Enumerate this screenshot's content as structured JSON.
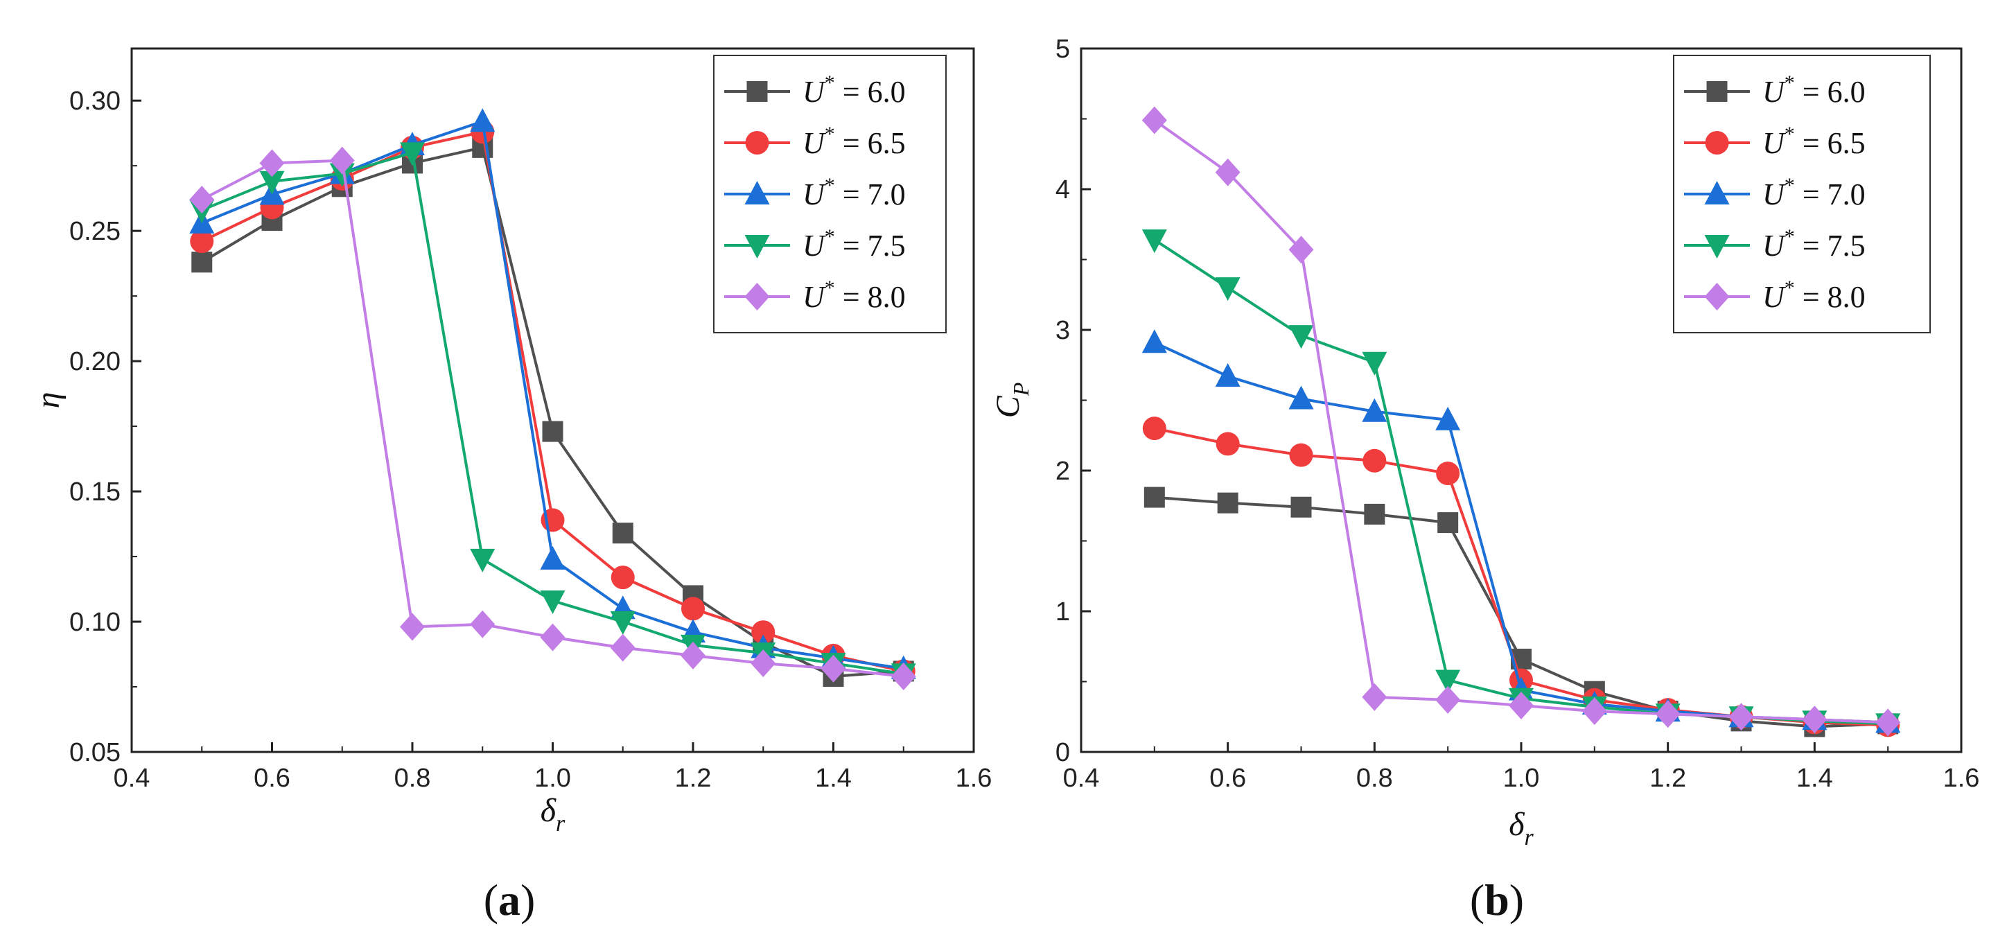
{
  "chart_data": [
    {
      "type": "line",
      "panel": "a",
      "panel_label": "a",
      "xlabel": "δ",
      "xlabel_sub": "r",
      "ylabel": "η",
      "xlim": [
        0.4,
        1.6
      ],
      "ylim": [
        0.05,
        0.32
      ],
      "xticks": [
        "0.4",
        "0.6",
        "0.8",
        "1.0",
        "1.2",
        "1.4",
        "1.6"
      ],
      "yticks": [
        "0.05",
        "0.10",
        "0.15",
        "0.20",
        "0.25",
        "0.30"
      ],
      "legend_position": "top-right",
      "x": [
        0.5,
        0.6,
        0.7,
        0.8,
        0.9,
        1.0,
        1.1,
        1.2,
        1.3,
        1.4,
        1.5
      ],
      "series": [
        {
          "name": "U* = 6.0",
          "legend_value": "6.0",
          "color": "#505050",
          "marker": "square",
          "values": [
            0.238,
            0.254,
            0.267,
            0.276,
            0.282,
            0.173,
            0.134,
            0.11,
            0.092,
            0.079,
            0.081
          ]
        },
        {
          "name": "U* = 6.5",
          "legend_value": "6.5",
          "color": "#f03c3c",
          "marker": "circle",
          "values": [
            0.246,
            0.259,
            0.27,
            0.282,
            0.288,
            0.139,
            0.117,
            0.105,
            0.096,
            0.087,
            0.081
          ]
        },
        {
          "name": "U* = 7.0",
          "legend_value": "7.0",
          "color": "#1c6fd6",
          "marker": "triangle-up",
          "values": [
            0.253,
            0.264,
            0.272,
            0.283,
            0.292,
            0.124,
            0.105,
            0.096,
            0.09,
            0.086,
            0.082
          ]
        },
        {
          "name": "U* = 7.5",
          "legend_value": "7.5",
          "color": "#12a86e",
          "marker": "triangle-down",
          "values": [
            0.258,
            0.269,
            0.272,
            0.28,
            0.124,
            0.108,
            0.1,
            0.091,
            0.088,
            0.084,
            0.08
          ]
        },
        {
          "name": "U* = 8.0",
          "legend_value": "8.0",
          "color": "#c27ee6",
          "marker": "diamond",
          "values": [
            0.262,
            0.276,
            0.277,
            0.098,
            0.099,
            0.094,
            0.09,
            0.087,
            0.084,
            0.082,
            0.079
          ]
        }
      ]
    },
    {
      "type": "line",
      "panel": "b",
      "panel_label": "b",
      "xlabel": "δ",
      "xlabel_sub": "r",
      "ylabel": "C",
      "ylabel_sub": "P",
      "xlim": [
        0.4,
        1.6
      ],
      "ylim": [
        0,
        5
      ],
      "xticks": [
        "0.4",
        "0.6",
        "0.8",
        "1.0",
        "1.2",
        "1.4",
        "1.6"
      ],
      "yticks": [
        "0",
        "1",
        "2",
        "3",
        "4",
        "5"
      ],
      "legend_position": "top-right",
      "x": [
        0.5,
        0.6,
        0.7,
        0.8,
        0.9,
        1.0,
        1.1,
        1.2,
        1.3,
        1.4,
        1.5
      ],
      "series": [
        {
          "name": "U* = 6.0",
          "legend_value": "6.0",
          "color": "#505050",
          "marker": "square",
          "values": [
            1.81,
            1.77,
            1.74,
            1.69,
            1.63,
            0.66,
            0.43,
            0.29,
            0.22,
            0.18,
            0.2
          ]
        },
        {
          "name": "U* = 6.5",
          "legend_value": "6.5",
          "color": "#f03c3c",
          "marker": "circle",
          "values": [
            2.3,
            2.19,
            2.11,
            2.07,
            1.98,
            0.51,
            0.37,
            0.3,
            0.25,
            0.21,
            0.19
          ]
        },
        {
          "name": "U* = 7.0",
          "legend_value": "7.0",
          "color": "#1c6fd6",
          "marker": "triangle-up",
          "values": [
            2.91,
            2.67,
            2.51,
            2.42,
            2.36,
            0.44,
            0.34,
            0.29,
            0.25,
            0.23,
            0.21
          ]
        },
        {
          "name": "U* = 7.5",
          "legend_value": "7.5",
          "color": "#12a86e",
          "marker": "triangle-down",
          "values": [
            3.64,
            3.3,
            2.96,
            2.77,
            0.51,
            0.38,
            0.32,
            0.27,
            0.25,
            0.22,
            0.2
          ]
        },
        {
          "name": "U* = 8.0",
          "legend_value": "8.0",
          "color": "#c27ee6",
          "marker": "diamond",
          "values": [
            4.49,
            4.12,
            3.57,
            0.39,
            0.37,
            0.33,
            0.29,
            0.27,
            0.25,
            0.23,
            0.21
          ]
        }
      ]
    }
  ],
  "legend_prefix": "U",
  "legend_sup": "*",
  "legend_eq": "="
}
